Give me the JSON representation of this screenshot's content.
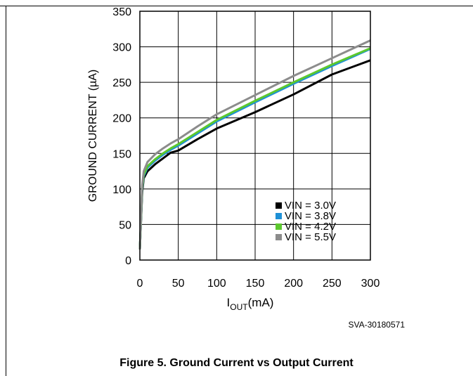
{
  "caption": "Figure 5. Ground Current vs Output Current",
  "figure_code": "SVA-30180571",
  "chart_data": {
    "type": "line",
    "title": "",
    "xlabel_main": "I",
    "xlabel_sub": "OUT",
    "xlabel_unit": "(mA)",
    "ylabel": "GROUND CURRENT (µA)",
    "xlim": [
      0,
      300
    ],
    "ylim": [
      0,
      350
    ],
    "x_ticks": [
      0,
      50,
      100,
      150,
      200,
      250,
      300
    ],
    "y_ticks": [
      0,
      50,
      100,
      150,
      200,
      250,
      300,
      350
    ],
    "grid": true,
    "legend_position": "bottom-right",
    "series": [
      {
        "name": "VIN = 3.0V",
        "color": "#000000",
        "x": [
          0,
          3,
          5,
          10,
          20,
          30,
          40,
          50,
          75,
          100,
          150,
          200,
          250,
          300
        ],
        "y": [
          15,
          95,
          115,
          125,
          135,
          143,
          151,
          154,
          170,
          185,
          208,
          233,
          261,
          281
        ]
      },
      {
        "name": "VIN = 3.8V",
        "color": "#1e90d6",
        "x": [
          0,
          3,
          5,
          10,
          20,
          30,
          40,
          50,
          75,
          100,
          150,
          200,
          250,
          300
        ],
        "y": [
          15,
          100,
          118,
          130,
          140,
          148,
          155,
          161,
          178,
          195,
          222,
          248,
          273,
          297
        ]
      },
      {
        "name": "VIN = 4.2V",
        "color": "#5cc82e",
        "x": [
          0,
          3,
          5,
          10,
          20,
          30,
          40,
          50,
          75,
          100,
          150,
          200,
          250,
          300
        ],
        "y": [
          15,
          102,
          120,
          132,
          142,
          150,
          157,
          163,
          180,
          197,
          224,
          250,
          275,
          298
        ]
      },
      {
        "name": "VIN = 5.5V",
        "color": "#8c8c8c",
        "x": [
          0,
          3,
          5,
          10,
          20,
          30,
          40,
          50,
          75,
          100,
          150,
          200,
          250,
          300
        ],
        "y": [
          15,
          105,
          125,
          138,
          149,
          157,
          164,
          170,
          188,
          205,
          232,
          259,
          284,
          309
        ]
      }
    ]
  }
}
